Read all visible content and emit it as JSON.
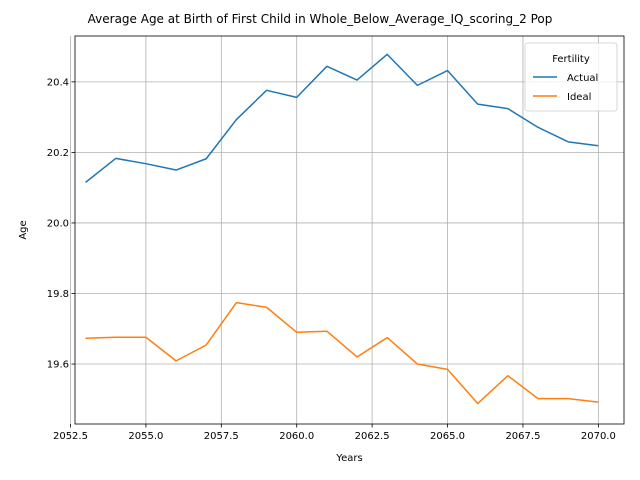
{
  "chart_data": {
    "type": "line",
    "title": "Average Age at Birth of First Child in Whole_Below_Average_IQ_scoring_2 Pop",
    "xlabel": "Years",
    "ylabel": "Age",
    "xlim": [
      2052.65,
      2070.85
    ],
    "ylim": [
      19.43,
      20.53
    ],
    "xticks": [
      2052.5,
      2055.0,
      2057.5,
      2060.0,
      2062.5,
      2065.0,
      2067.5,
      2070.0
    ],
    "xtick_labels": [
      "2052.5",
      "2055.0",
      "2057.5",
      "2060.0",
      "2062.5",
      "2065.0",
      "2067.5",
      "2070.0"
    ],
    "yticks": [
      19.6,
      19.8,
      20.0,
      20.2,
      20.4
    ],
    "ytick_labels": [
      "19.6",
      "19.8",
      "20.0",
      "20.2",
      "20.4"
    ],
    "grid": true,
    "legend": {
      "title": "Fertility",
      "placement": "top-right"
    },
    "x": [
      2053,
      2054,
      2055,
      2056,
      2057,
      2058,
      2059,
      2060,
      2061,
      2062,
      2063,
      2064,
      2065,
      2066,
      2067,
      2068,
      2069,
      2070
    ],
    "series": [
      {
        "name": "Actual",
        "color": "#1f77b4",
        "values": [
          20.115,
          20.183,
          20.168,
          20.15,
          20.182,
          20.293,
          20.376,
          20.356,
          20.444,
          20.405,
          20.478,
          20.39,
          20.432,
          20.337,
          20.324,
          20.271,
          20.23,
          20.219
        ]
      },
      {
        "name": "Ideal",
        "color": "#ff7f0e",
        "values": [
          19.673,
          19.676,
          19.676,
          19.609,
          19.654,
          19.774,
          19.761,
          19.69,
          19.693,
          19.62,
          19.675,
          19.6,
          19.585,
          19.488,
          19.567,
          19.502,
          19.502,
          19.492
        ]
      }
    ]
  }
}
